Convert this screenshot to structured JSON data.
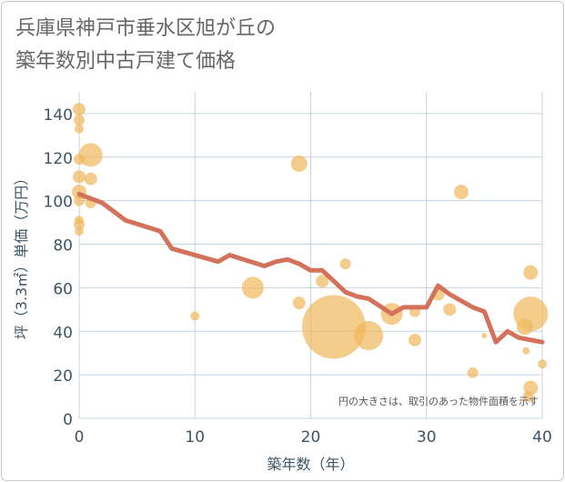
{
  "title": {
    "line1": "兵庫県神戸市垂水区旭が丘の",
    "line2": "築年数別中古戸建て価格"
  },
  "colors": {
    "line": "#d4715a",
    "bubble": "#f0b85c",
    "grid": "#c5d3df",
    "axis_text": "#3d5566",
    "plot_bg": "#ffffff"
  },
  "chart_data": {
    "type": "scatter",
    "xlabel": "築年数（年）",
    "ylabel": "坪（3.3㎡）単価（万円）",
    "xlim": [
      0,
      40
    ],
    "ylim": [
      0,
      150
    ],
    "x_ticks": [
      0,
      10,
      20,
      30,
      40
    ],
    "y_ticks": [
      0,
      20,
      40,
      60,
      80,
      100,
      120,
      140
    ],
    "grid": true,
    "annotation": "円の大きさは、取引のあった物件面積を示す",
    "bubbles": [
      {
        "x": 0,
        "y": 142,
        "s": 7
      },
      {
        "x": 0,
        "y": 137,
        "s": 6
      },
      {
        "x": 0,
        "y": 133,
        "s": 5
      },
      {
        "x": 0,
        "y": 119,
        "s": 6
      },
      {
        "x": 0,
        "y": 111,
        "s": 7
      },
      {
        "x": 0,
        "y": 104,
        "s": 8
      },
      {
        "x": 0,
        "y": 100,
        "s": 6
      },
      {
        "x": 0,
        "y": 91,
        "s": 5
      },
      {
        "x": 0,
        "y": 89,
        "s": 6
      },
      {
        "x": 0,
        "y": 86,
        "s": 5
      },
      {
        "x": 1,
        "y": 121,
        "s": 13
      },
      {
        "x": 1,
        "y": 110,
        "s": 7
      },
      {
        "x": 1,
        "y": 99,
        "s": 6
      },
      {
        "x": 10,
        "y": 47,
        "s": 5
      },
      {
        "x": 15,
        "y": 60,
        "s": 12
      },
      {
        "x": 19,
        "y": 117,
        "s": 9
      },
      {
        "x": 19,
        "y": 53,
        "s": 7
      },
      {
        "x": 21,
        "y": 63,
        "s": 7
      },
      {
        "x": 22,
        "y": 42,
        "s": 35
      },
      {
        "x": 23,
        "y": 71,
        "s": 6
      },
      {
        "x": 25,
        "y": 38,
        "s": 16
      },
      {
        "x": 27,
        "y": 48,
        "s": 12
      },
      {
        "x": 29,
        "y": 49,
        "s": 6
      },
      {
        "x": 29,
        "y": 36,
        "s": 7
      },
      {
        "x": 31,
        "y": 57,
        "s": 7
      },
      {
        "x": 32,
        "y": 50,
        "s": 7
      },
      {
        "x": 33,
        "y": 104,
        "s": 8
      },
      {
        "x": 34,
        "y": 21,
        "s": 6
      },
      {
        "x": 35,
        "y": 38,
        "s": 3
      },
      {
        "x": 38.5,
        "y": 42,
        "s": 9
      },
      {
        "x": 38.6,
        "y": 31,
        "s": 4
      },
      {
        "x": 39,
        "y": 67,
        "s": 8
      },
      {
        "x": 39,
        "y": 48,
        "s": 19
      },
      {
        "x": 39,
        "y": 14,
        "s": 8
      },
      {
        "x": 38.8,
        "y": 10,
        "s": 6
      },
      {
        "x": 40,
        "y": 25,
        "s": 5
      }
    ],
    "series": [
      {
        "type": "line",
        "x": [
          0,
          2,
          4,
          7,
          8,
          12,
          13,
          16,
          17,
          18,
          19,
          20,
          21,
          22,
          23,
          24,
          25,
          27,
          28,
          29,
          30,
          31,
          32,
          34,
          35,
          36,
          37,
          38,
          40
        ],
        "y": [
          103,
          99,
          91,
          86,
          78,
          72,
          75,
          70,
          72,
          73,
          71,
          68,
          68,
          63,
          58,
          56,
          55,
          48,
          51,
          51,
          51,
          61,
          57,
          51,
          49,
          35,
          40,
          37,
          35
        ]
      }
    ]
  }
}
